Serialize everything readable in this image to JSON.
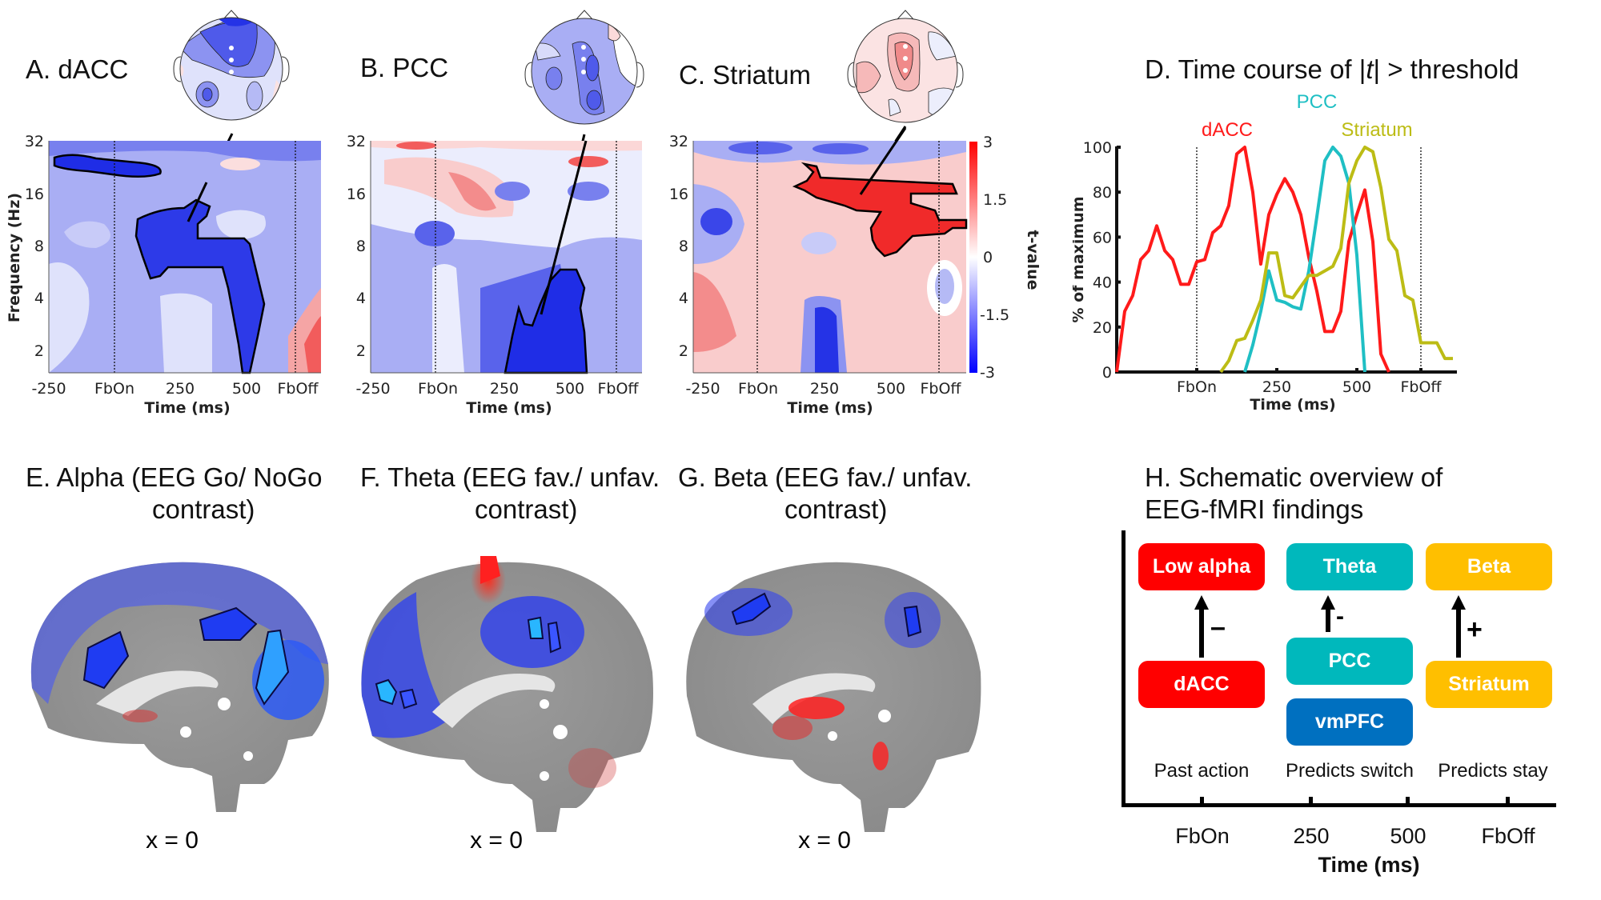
{
  "panels": {
    "A": {
      "title": "A. dACC"
    },
    "B": {
      "title": "B. PCC"
    },
    "C": {
      "title": "C. Striatum"
    },
    "D": {
      "title_pre": "D. Time course of |",
      "title_t": "t",
      "title_post": "| > threshold"
    },
    "E": {
      "title_line1": "E. Alpha (EEG Go/ NoGo",
      "title_line2": "contrast)",
      "slice": "x = 0"
    },
    "F": {
      "title_line1": "F. Theta (EEG fav./ unfav.",
      "title_line2": "contrast)",
      "slice": "x = 0"
    },
    "G": {
      "title_line1": "G. Beta (EEG fav./ unfav.",
      "title_line2": "contrast)",
      "slice": "x = 0"
    },
    "H": {
      "title_line1": "H. Schematic overview of",
      "title_line2": "EEG-fMRI findings"
    }
  },
  "tf_axes": {
    "ylabel": "Frequency (Hz)",
    "yticks": [
      "32",
      "16",
      "8",
      "4",
      "2"
    ],
    "xticks": [
      "-250",
      "FbOn",
      "250",
      "500",
      "FbOff"
    ],
    "xlabel": "Time (ms)"
  },
  "colorbar": {
    "label": "t-value",
    "ticks": [
      "3",
      "1.5",
      "0",
      "-1.5",
      "-3"
    ],
    "range": [
      -3,
      3
    ],
    "colors": {
      "neg": "#0000ff",
      "zero": "#ffffff",
      "pos": "#ff0000"
    }
  },
  "chart_data": {
    "type": "line",
    "title": "D. Time course of |t| > threshold",
    "xlabel": "Time (ms)",
    "ylabel": "% of maximum",
    "xlim": [
      -250,
      800
    ],
    "ylim": [
      0,
      100
    ],
    "yticks": [
      0,
      20,
      40,
      60,
      80,
      100
    ],
    "xticks": [
      {
        "value": 0,
        "label": "FbOn"
      },
      {
        "value": 250,
        "label": "250"
      },
      {
        "value": 500,
        "label": "500"
      },
      {
        "value": 700,
        "label": "FbOff"
      }
    ],
    "vlines": [
      0,
      700
    ],
    "grid": false,
    "legend": "inline-labels-top",
    "series": [
      {
        "name": "dACC",
        "color": "#ff1a1a",
        "x": [
          -250,
          -225,
          -200,
          -175,
          -150,
          -125,
          -100,
          -75,
          -50,
          -25,
          0,
          25,
          50,
          75,
          100,
          125,
          150,
          175,
          200,
          225,
          250,
          275,
          300,
          325,
          350,
          375,
          400,
          425,
          450,
          475,
          500,
          525,
          550,
          575,
          600
        ],
        "y": [
          0,
          27,
          34,
          50,
          54,
          65,
          54,
          50,
          39,
          39,
          49,
          50,
          62,
          65,
          74,
          97,
          100,
          80,
          48,
          70,
          79,
          86,
          80,
          70,
          51,
          36,
          18,
          18,
          27,
          58,
          70,
          81,
          58,
          8,
          0
        ]
      },
      {
        "name": "PCC",
        "color": "#1fbfc4",
        "x": [
          150,
          175,
          200,
          225,
          250,
          275,
          300,
          325,
          350,
          375,
          400,
          425,
          450,
          475,
          500,
          525
        ],
        "y": [
          0,
          12,
          27,
          45,
          32,
          31,
          29,
          28,
          45,
          69,
          94,
          100,
          96,
          84,
          52,
          0
        ]
      },
      {
        "name": "Striatum",
        "color": "#bcbc15",
        "x": [
          75,
          100,
          125,
          150,
          175,
          200,
          225,
          250,
          275,
          300,
          325,
          350,
          375,
          400,
          425,
          450,
          475,
          500,
          525,
          550,
          575,
          600,
          625,
          650,
          675,
          700,
          725,
          750,
          775,
          800
        ],
        "y": [
          0,
          5,
          14,
          15,
          23,
          32,
          53,
          53,
          34,
          33,
          38,
          43,
          43,
          45,
          47,
          55,
          84,
          94,
          100,
          98,
          82,
          59,
          54,
          34,
          32,
          13,
          13,
          13,
          6,
          6
        ]
      }
    ]
  },
  "schematic": {
    "boxes": [
      {
        "label": "Low alpha",
        "color": "#ff0000"
      },
      {
        "label": "Theta",
        "color": "#00b8bc"
      },
      {
        "label": "Beta",
        "color": "#ffbf00"
      },
      {
        "label": "dACC",
        "color": "#ff0000"
      },
      {
        "label": "PCC",
        "color": "#00b8bc"
      },
      {
        "label": "vmPFC",
        "color": "#0070c0"
      },
      {
        "label": "Striatum",
        "color": "#ffbf00"
      }
    ],
    "signs": [
      "–",
      "-",
      "+"
    ],
    "column_labels": [
      "Past action",
      "Predicts switch",
      "Predicts stay"
    ],
    "xticks": [
      "FbOn",
      "250",
      "500",
      "FbOff"
    ],
    "xlabel": "Time (ms)"
  }
}
